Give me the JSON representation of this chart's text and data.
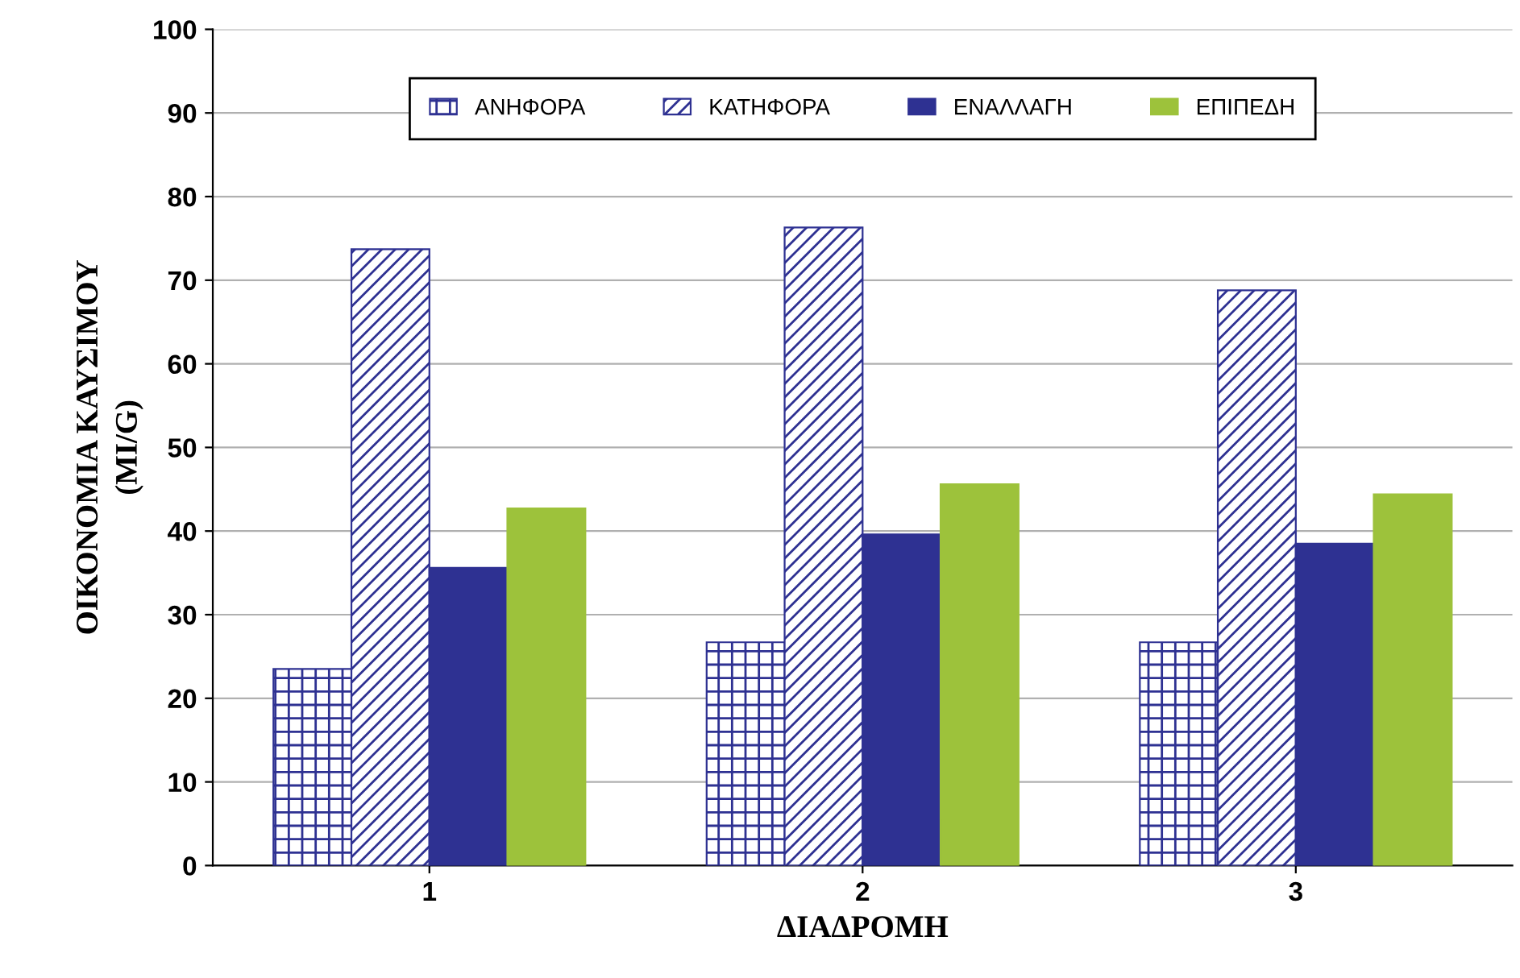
{
  "chart_data": {
    "type": "bar",
    "xlabel": "ΔΙΑΔΡΟΜΗ",
    "ylabel": "ΟΙΚΟΝΟΜΙΑ ΚΑΥΣΙΜΟΥ\n(MI/G)",
    "categories": [
      "1",
      "2",
      "3"
    ],
    "series": [
      {
        "name": "ΑΝΗΦΟΡΑ",
        "color": "#2e3192",
        "values": [
          23.5,
          26.7,
          26.7
        ]
      },
      {
        "name": "ΚΑΤΗΦΟΡΑ",
        "color": "#2e3192",
        "values": [
          73.7,
          76.3,
          68.8
        ]
      },
      {
        "name": "ΕΝΑΛΛΑΓΗ",
        "color": "#2e3192",
        "values": [
          35.6,
          39.6,
          38.5
        ]
      },
      {
        "name": "ΕΠΙΠΕΔΗ",
        "color": "#9dc23b",
        "values": [
          42.7,
          45.6,
          44.4
        ]
      }
    ],
    "ylim": [
      0,
      100
    ],
    "yticks": [
      0,
      10,
      20,
      30,
      40,
      50,
      60,
      70,
      80,
      90,
      100
    ],
    "grid": "y",
    "legend": "top"
  }
}
